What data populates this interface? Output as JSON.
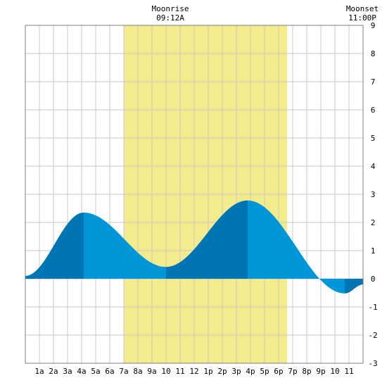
{
  "header": {
    "moonrise_label": "Moonrise",
    "moonrise_time": "09:12A",
    "moonset_label": "Moonset",
    "moonset_time": "11:00P"
  },
  "chart_data": {
    "type": "area",
    "title": "",
    "xlabel": "",
    "ylabel": "",
    "x_tick_labels": [
      "1a",
      "2a",
      "3a",
      "4a",
      "5a",
      "6a",
      "7a",
      "8a",
      "9a",
      "10",
      "11",
      "12",
      "1p",
      "2p",
      "3p",
      "4p",
      "5p",
      "6p",
      "7p",
      "8p",
      "9p",
      "10",
      "11"
    ],
    "x_tick_hours": [
      1,
      2,
      3,
      4,
      5,
      6,
      7,
      8,
      9,
      10,
      11,
      12,
      13,
      14,
      15,
      16,
      17,
      18,
      19,
      20,
      21,
      22,
      23
    ],
    "xlim_hours": [
      0,
      24
    ],
    "ylim": [
      -3,
      9
    ],
    "y_ticks": [
      -3,
      -2,
      -1,
      0,
      1,
      2,
      3,
      4,
      5,
      6,
      7,
      8,
      9
    ],
    "grid": true,
    "daylight_hours": [
      7.0,
      18.6
    ],
    "daylight_color": "#f4eb8c",
    "fill_color": "#0096d8",
    "dark_fill_color": "#0075b3",
    "extrema": [
      {
        "hour": 0.0,
        "value": 0.1
      },
      {
        "hour": 4.15,
        "value": 2.35
      },
      {
        "hour": 10.0,
        "value": 0.42
      },
      {
        "hour": 15.8,
        "value": 2.78
      },
      {
        "hour": 22.7,
        "value": -0.52
      },
      {
        "hour": 24.0,
        "value": -0.2
      }
    ],
    "dark_bands": [
      [
        0.0,
        4.15
      ],
      [
        10.0,
        15.8
      ],
      [
        22.7,
        24.0
      ]
    ]
  }
}
